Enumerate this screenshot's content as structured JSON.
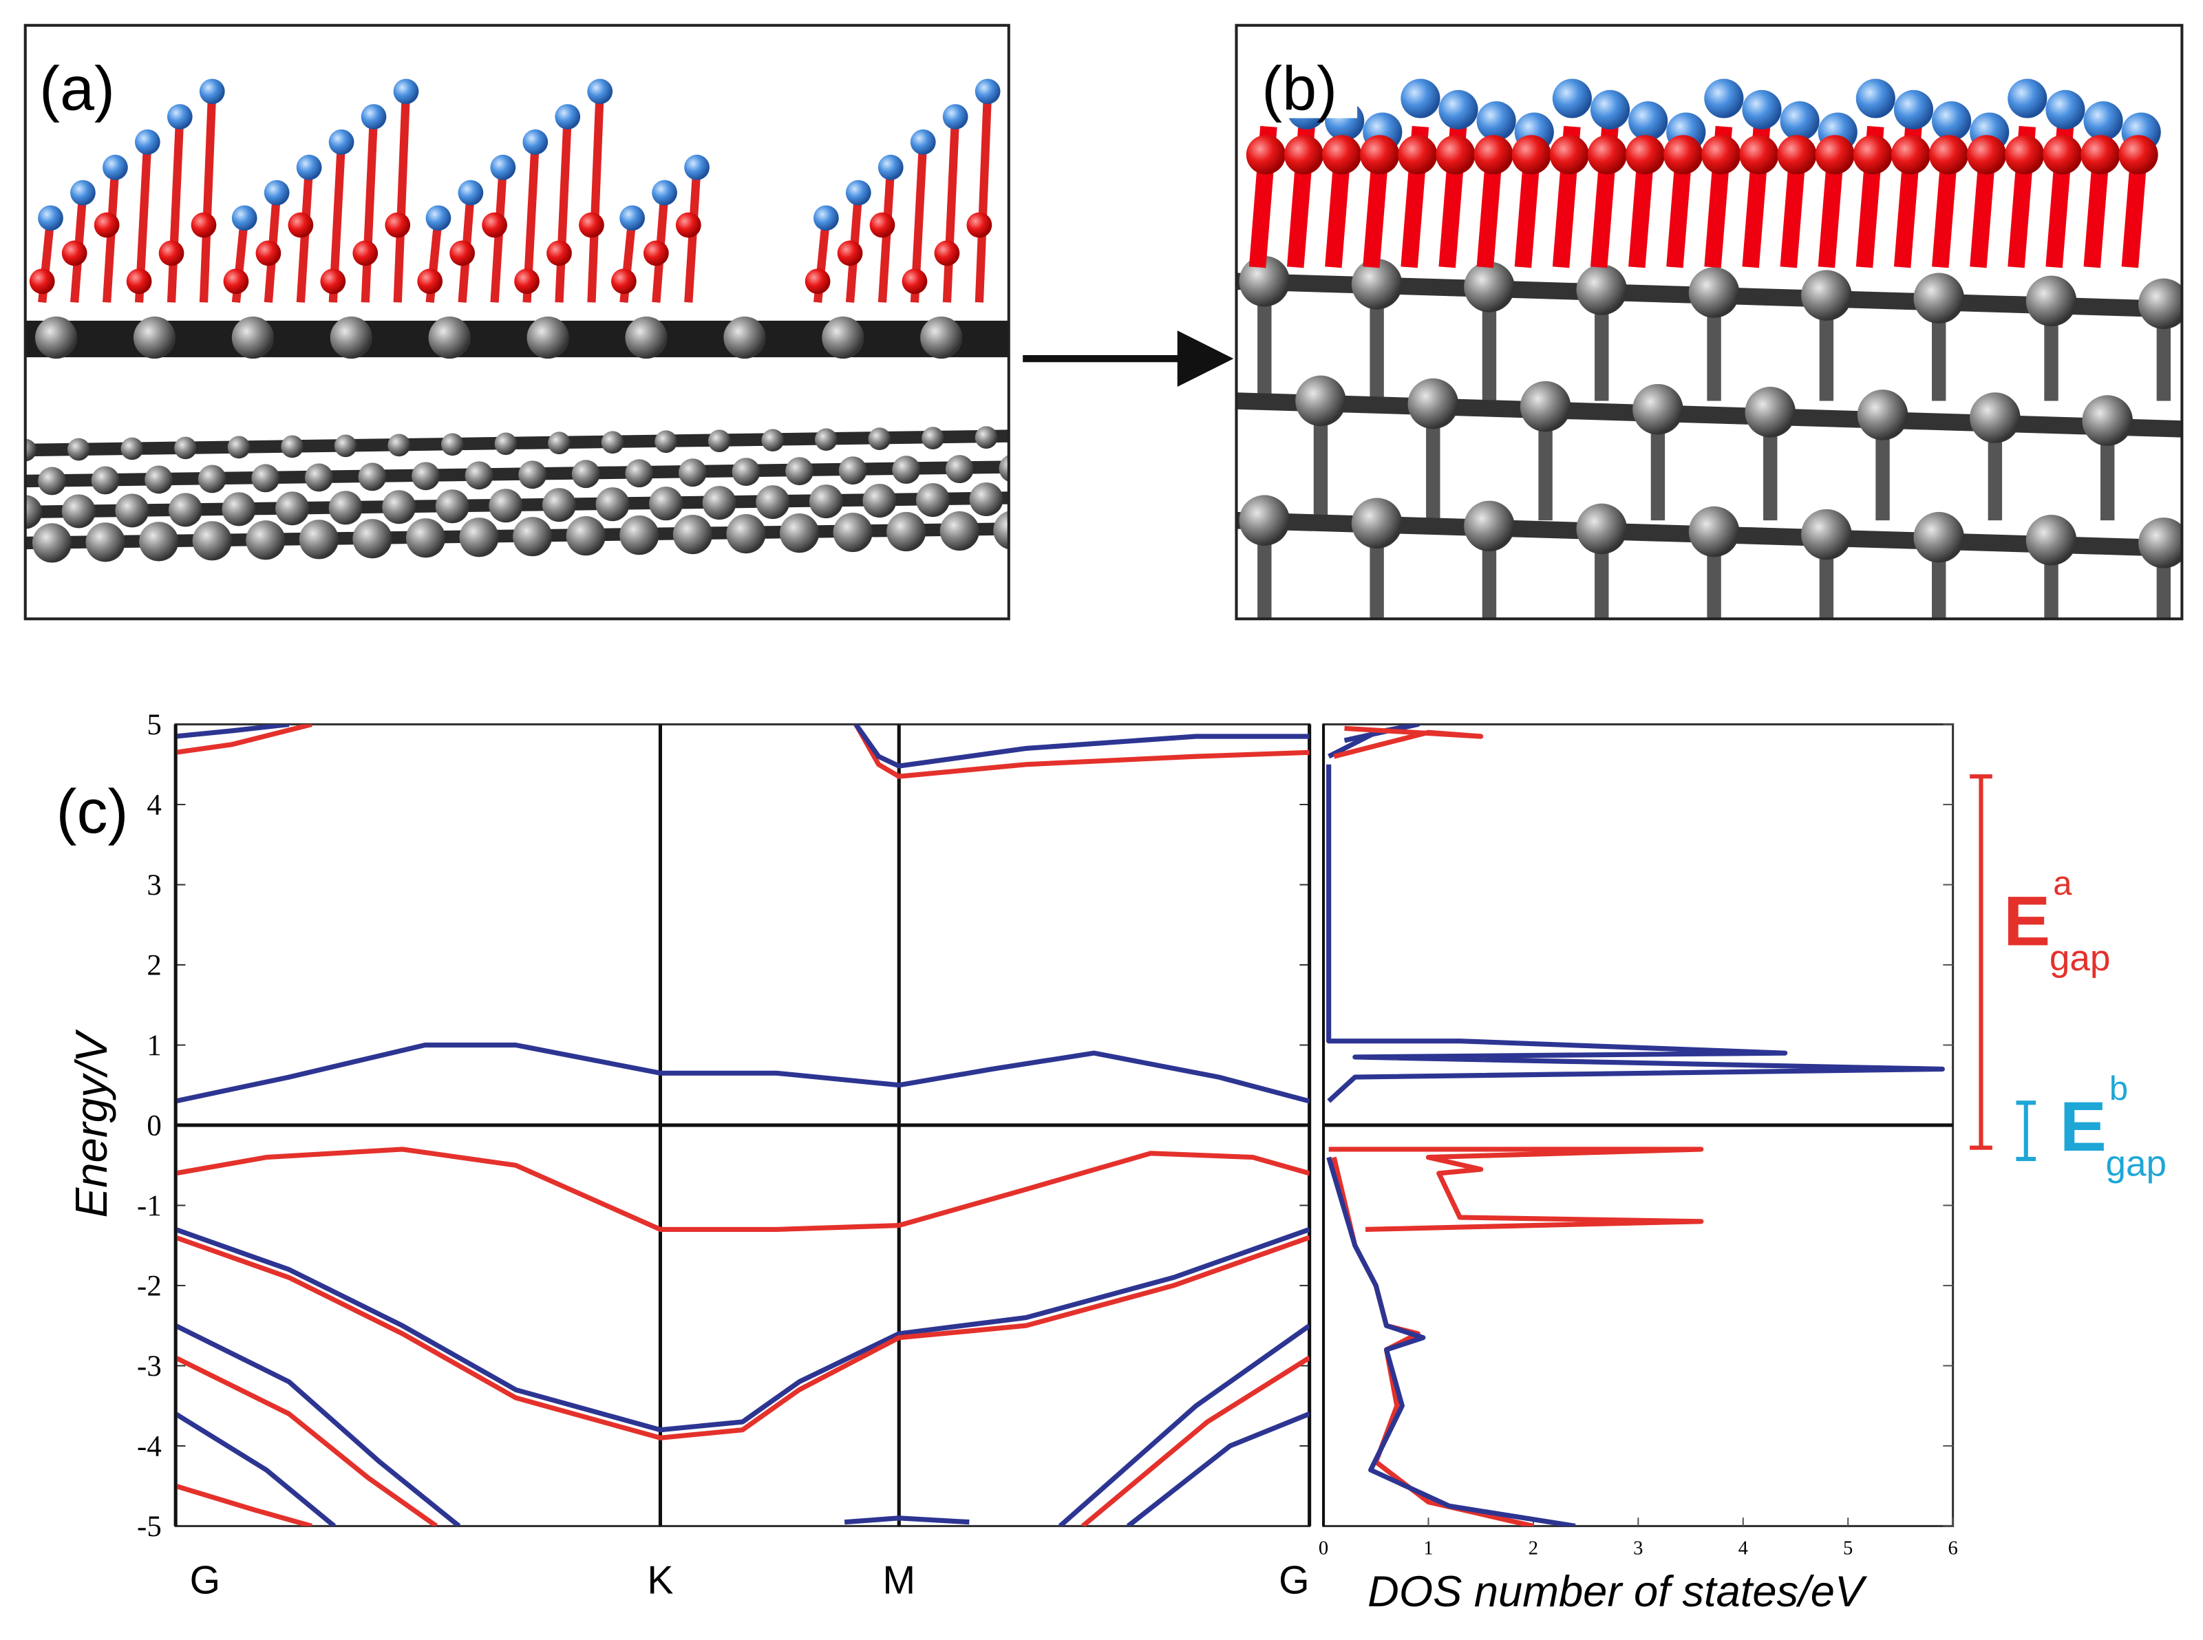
{
  "panels": [
    {
      "label": "(a)"
    },
    {
      "label": "(b)"
    }
  ],
  "chart_data": [
    {
      "type": "line",
      "label": "(c)",
      "y_label": "Energy/V",
      "xlim": [
        0,
        1
      ],
      "xticks": [
        {
          "value": 0,
          "label": "G"
        },
        {
          "value": 0.4275,
          "label": "K"
        },
        {
          "value": 0.638,
          "label": "M"
        },
        {
          "value": 1,
          "label": "G"
        }
      ],
      "ylim": [
        -5,
        5
      ],
      "yticks": [
        5,
        4,
        3,
        2,
        1,
        0,
        -1,
        -2,
        -3,
        -4,
        -5
      ],
      "grid": true,
      "series": [
        {
          "color": "#2d3592",
          "x": [
            0,
            0.1,
            0.22,
            0.3,
            0.4275,
            0.53,
            0.638,
            0.72,
            0.81,
            0.92,
            1
          ],
          "values": [
            0.3,
            0.6,
            1.0,
            1.0,
            0.65,
            0.65,
            0.5,
            0.7,
            0.9,
            0.6,
            0.3
          ]
        },
        {
          "color": "#e4312b",
          "x": [
            0,
            0.08,
            0.2,
            0.3,
            0.4275,
            0.53,
            0.638,
            0.75,
            0.86,
            0.95,
            1
          ],
          "values": [
            -0.6,
            -0.4,
            -0.3,
            -0.5,
            -1.3,
            -1.3,
            -1.25,
            -0.8,
            -0.35,
            -0.4,
            -0.6
          ]
        },
        {
          "color": "#2d3592",
          "x": [
            0,
            0.1,
            0.2,
            0.3,
            0.4275,
            0.5,
            0.55,
            0.638,
            0.75,
            0.88,
            1
          ],
          "values": [
            -1.3,
            -1.8,
            -2.5,
            -3.3,
            -3.8,
            -3.7,
            -3.2,
            -2.6,
            -2.4,
            -1.9,
            -1.3
          ]
        },
        {
          "color": "#e4312b",
          "x": [
            0,
            0.1,
            0.2,
            0.3,
            0.4275,
            0.5,
            0.55,
            0.638,
            0.75,
            0.88,
            1
          ],
          "values": [
            -1.4,
            -1.9,
            -2.6,
            -3.4,
            -3.9,
            -3.8,
            -3.3,
            -2.65,
            -2.5,
            -2.0,
            -1.4
          ]
        },
        {
          "color": "#2d3592",
          "x": [
            0,
            0.1,
            0.18,
            0.25
          ],
          "values": [
            -2.5,
            -3.2,
            -4.2,
            -5
          ]
        },
        {
          "color": "#e4312b",
          "x": [
            0,
            0.1,
            0.17,
            0.23
          ],
          "values": [
            -2.9,
            -3.6,
            -4.4,
            -5
          ]
        },
        {
          "color": "#2d3592",
          "x": [
            0,
            0.08,
            0.14
          ],
          "values": [
            -3.6,
            -4.3,
            -5
          ]
        },
        {
          "color": "#e4312b",
          "x": [
            0,
            0.07,
            0.12
          ],
          "values": [
            -4.5,
            -4.8,
            -5
          ]
        },
        {
          "color": "#2d3592",
          "x": [
            0.78,
            0.9,
            1
          ],
          "values": [
            -5,
            -3.5,
            -2.5
          ]
        },
        {
          "color": "#e4312b",
          "x": [
            0.8,
            0.91,
            1
          ],
          "values": [
            -5,
            -3.7,
            -2.9
          ]
        },
        {
          "color": "#2d3592",
          "x": [
            0.84,
            0.93,
            1
          ],
          "values": [
            -5,
            -4,
            -3.6
          ]
        },
        {
          "color": "#2d3592",
          "x": [
            0.59,
            0.638,
            0.7
          ],
          "values": [
            -4.95,
            -4.9,
            -4.95
          ]
        },
        {
          "color": "#e4312b",
          "x": [
            0,
            0.05,
            0.12
          ],
          "values": [
            4.65,
            4.75,
            5
          ]
        },
        {
          "color": "#2d3592",
          "x": [
            0,
            0.05,
            0.1
          ],
          "values": [
            4.85,
            4.92,
            5
          ]
        },
        {
          "color": "#e4312b",
          "x": [
            0.6,
            0.62,
            0.638,
            0.75,
            0.9,
            1
          ],
          "values": [
            5,
            4.5,
            4.35,
            4.5,
            4.6,
            4.65
          ]
        },
        {
          "color": "#2d3592",
          "x": [
            0.6,
            0.62,
            0.638,
            0.75,
            0.9,
            1
          ],
          "values": [
            5,
            4.6,
            4.48,
            4.7,
            4.85,
            4.85
          ]
        }
      ]
    },
    {
      "type": "line",
      "x_label": "DOS number of states/eV",
      "xlim": [
        0,
        6
      ],
      "xticks": [
        0,
        1,
        2,
        3,
        4,
        5,
        6
      ],
      "ylim": [
        -5,
        5
      ],
      "yticks": [
        5,
        4,
        3,
        2,
        1,
        0,
        -1,
        -2,
        -3,
        -4,
        -5
      ],
      "grid": false,
      "series": [
        {
          "color": "#2d3592",
          "x": [
            0.05,
            0.05,
            1.3,
            4.4,
            0.3,
            5.9,
            0.3,
            0.05
          ],
          "values": [
            4.5,
            1.05,
            1.05,
            0.9,
            0.85,
            0.7,
            0.6,
            0.3
          ]
        },
        {
          "color": "#2d3592",
          "x": [
            0.05,
            0.5,
            0.9,
            0.2
          ],
          "values": [
            4.6,
            4.9,
            5,
            4.8
          ]
        },
        {
          "color": "#e4312b",
          "x": [
            0.1,
            1.0,
            1.5,
            0.2
          ],
          "values": [
            4.6,
            4.9,
            4.85,
            4.95
          ]
        },
        {
          "color": "#e4312b",
          "x": [
            0.05,
            3.6,
            1.0,
            1.5,
            1.1,
            1.3,
            3.6,
            0.4
          ],
          "values": [
            -0.3,
            -0.3,
            -0.4,
            -0.55,
            -0.6,
            -1.15,
            -1.2,
            -1.3
          ]
        },
        {
          "color": "#e4312b",
          "x": [
            0.1,
            0.3,
            0.5,
            0.6,
            0.9,
            0.6,
            0.7,
            0.5,
            1.0,
            2.0
          ],
          "values": [
            -0.4,
            -1.5,
            -2.0,
            -2.5,
            -2.6,
            -2.8,
            -3.5,
            -4.2,
            -4.7,
            -5
          ]
        },
        {
          "color": "#2d3592",
          "x": [
            0.05,
            0.3,
            0.5,
            0.6,
            0.95,
            0.6,
            0.75,
            0.45,
            1.2,
            2.4
          ],
          "values": [
            -0.4,
            -1.5,
            -2.0,
            -2.5,
            -2.65,
            -2.8,
            -3.5,
            -4.3,
            -4.75,
            -5
          ]
        }
      ]
    }
  ],
  "annotations": {
    "gap_a": {
      "main": "E",
      "sup": "a",
      "sub": "gap"
    },
    "gap_b": {
      "main": "E",
      "sup": "b",
      "sub": "gap"
    }
  }
}
